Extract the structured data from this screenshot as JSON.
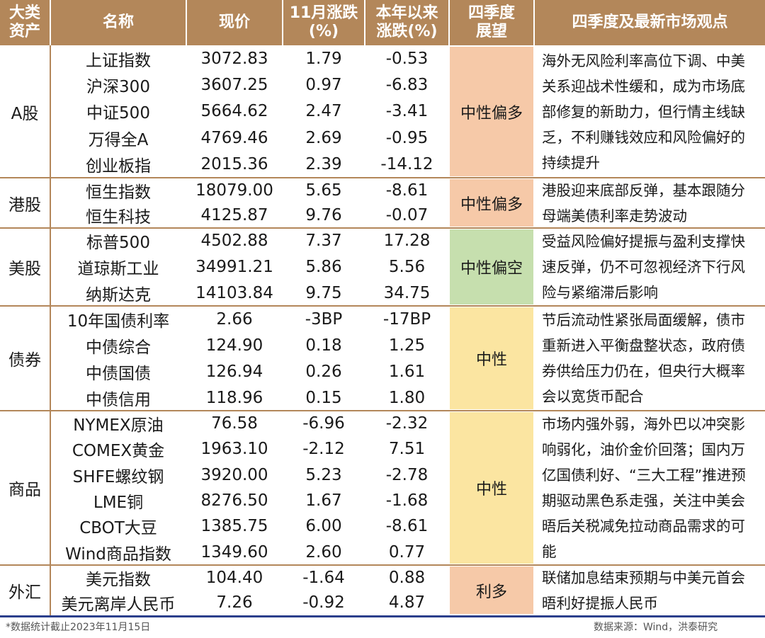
{
  "header": {
    "col_category": "大类资产",
    "col_name": "名称",
    "col_price": "现价",
    "col_nov": "11月涨跌(%)",
    "col_ytd": "本年以来涨跌(%)",
    "col_q4": "四季度展望",
    "col_view": "四季度及最新市场观点"
  },
  "groups": [
    {
      "category": "A股",
      "outlook": "中性偏多",
      "outlook_color": "#f6c9a8",
      "view": "海外无风险利率高位下调、中美关系迎战术性缓和，成为市场底部修复的新助力，但行情主线缺乏，不利赚钱效应和风险偏好的持续提升",
      "rows": [
        {
          "name": "上证指数",
          "price": "3072.83",
          "nov": "1.79",
          "ytd": "-0.53"
        },
        {
          "name": "沪深300",
          "price": "3607.25",
          "nov": "0.97",
          "ytd": "-6.83"
        },
        {
          "name": "中证500",
          "price": "5664.62",
          "nov": "2.47",
          "ytd": "-3.41"
        },
        {
          "name": "万得全A",
          "price": "4769.46",
          "nov": "2.69",
          "ytd": "-0.95"
        },
        {
          "name": "创业板指",
          "price": "2015.36",
          "nov": "2.39",
          "ytd": "-14.12"
        }
      ]
    },
    {
      "category": "港股",
      "outlook": "中性偏多",
      "outlook_color": "#f6c9a8",
      "view": "港股迎来底部反弹，基本跟随分母端美债利率走势波动",
      "rows": [
        {
          "name": "恒生指数",
          "price": "18079.00",
          "nov": "5.65",
          "ytd": "-8.61"
        },
        {
          "name": "恒生科技",
          "price": "4125.87",
          "nov": "9.76",
          "ytd": "-0.07"
        }
      ]
    },
    {
      "category": "美股",
      "outlook": "中性偏空",
      "outlook_color": "#c6dfae",
      "view": "受益风险偏好提振与盈利支撑快速反弹，仍不可忽视经济下行风险与紧缩滞后影响",
      "rows": [
        {
          "name": "标普500",
          "price": "4502.88",
          "nov": "7.37",
          "ytd": "17.28"
        },
        {
          "name": "道琼斯工业",
          "price": "34991.21",
          "nov": "5.86",
          "ytd": "5.56"
        },
        {
          "name": "纳斯达克",
          "price": "14103.84",
          "nov": "9.75",
          "ytd": "34.75"
        }
      ]
    },
    {
      "category": "债券",
      "outlook": "中性",
      "outlook_color": "#fbe5a1",
      "view": "节后流动性紧张局面缓解，债市重新进入平衡盘整状态，政府债券供给压力仍在，但央行大概率会以宽货币配合",
      "rows": [
        {
          "name": "10年国债利率",
          "price": "2.66",
          "nov": "-3BP",
          "ytd": "-17BP"
        },
        {
          "name": "中债综合",
          "price": "124.90",
          "nov": "0.18",
          "ytd": "1.25"
        },
        {
          "name": "中债国债",
          "price": "126.94",
          "nov": "0.26",
          "ytd": "1.61"
        },
        {
          "name": "中债信用",
          "price": "118.96",
          "nov": "0.15",
          "ytd": "1.80"
        }
      ]
    },
    {
      "category": "商品",
      "outlook": "中性",
      "outlook_color": "#fbe5a1",
      "view": "市场内强外弱，海外巴以冲突影响弱化，油价金价回落；国内万亿国债利好、“三大工程”推进预期驱动黑色系走强，关注中美会晤后关税减免拉动商品需求的可能",
      "rows": [
        {
          "name": "NYMEX原油",
          "price": "76.58",
          "nov": "-6.96",
          "ytd": "-2.32"
        },
        {
          "name": "COMEX黄金",
          "price": "1963.10",
          "nov": "-2.12",
          "ytd": "7.51"
        },
        {
          "name": "SHFE螺纹钢",
          "price": "3920.00",
          "nov": "5.23",
          "ytd": "-2.78"
        },
        {
          "name": "LME铜",
          "price": "8276.50",
          "nov": "1.67",
          "ytd": "-1.68"
        },
        {
          "name": "CBOT大豆",
          "price": "1385.75",
          "nov": "6.00",
          "ytd": "-8.61"
        },
        {
          "name": "Wind商品指数",
          "price": "1349.60",
          "nov": "2.60",
          "ytd": "0.77"
        }
      ]
    },
    {
      "category": "外汇",
      "outlook": "利多",
      "outlook_color": "#f6c9a8",
      "view": "联储加息结束预期与中美元首会晤利好提振人民币",
      "rows": [
        {
          "name": "美元指数",
          "price": "104.40",
          "nov": "-1.64",
          "ytd": "0.88"
        },
        {
          "name": "美元离岸人民币",
          "price": "7.26",
          "nov": "-0.92",
          "ytd": "4.87"
        }
      ]
    }
  ],
  "footer": {
    "note": "*数据统计截止2023年11月15日",
    "source": "数据来源：Wind，洪泰研究"
  },
  "colors": {
    "header_bg": "#b3875a",
    "border": "#b3875a",
    "bottom_rule": "#2b3f8c"
  }
}
